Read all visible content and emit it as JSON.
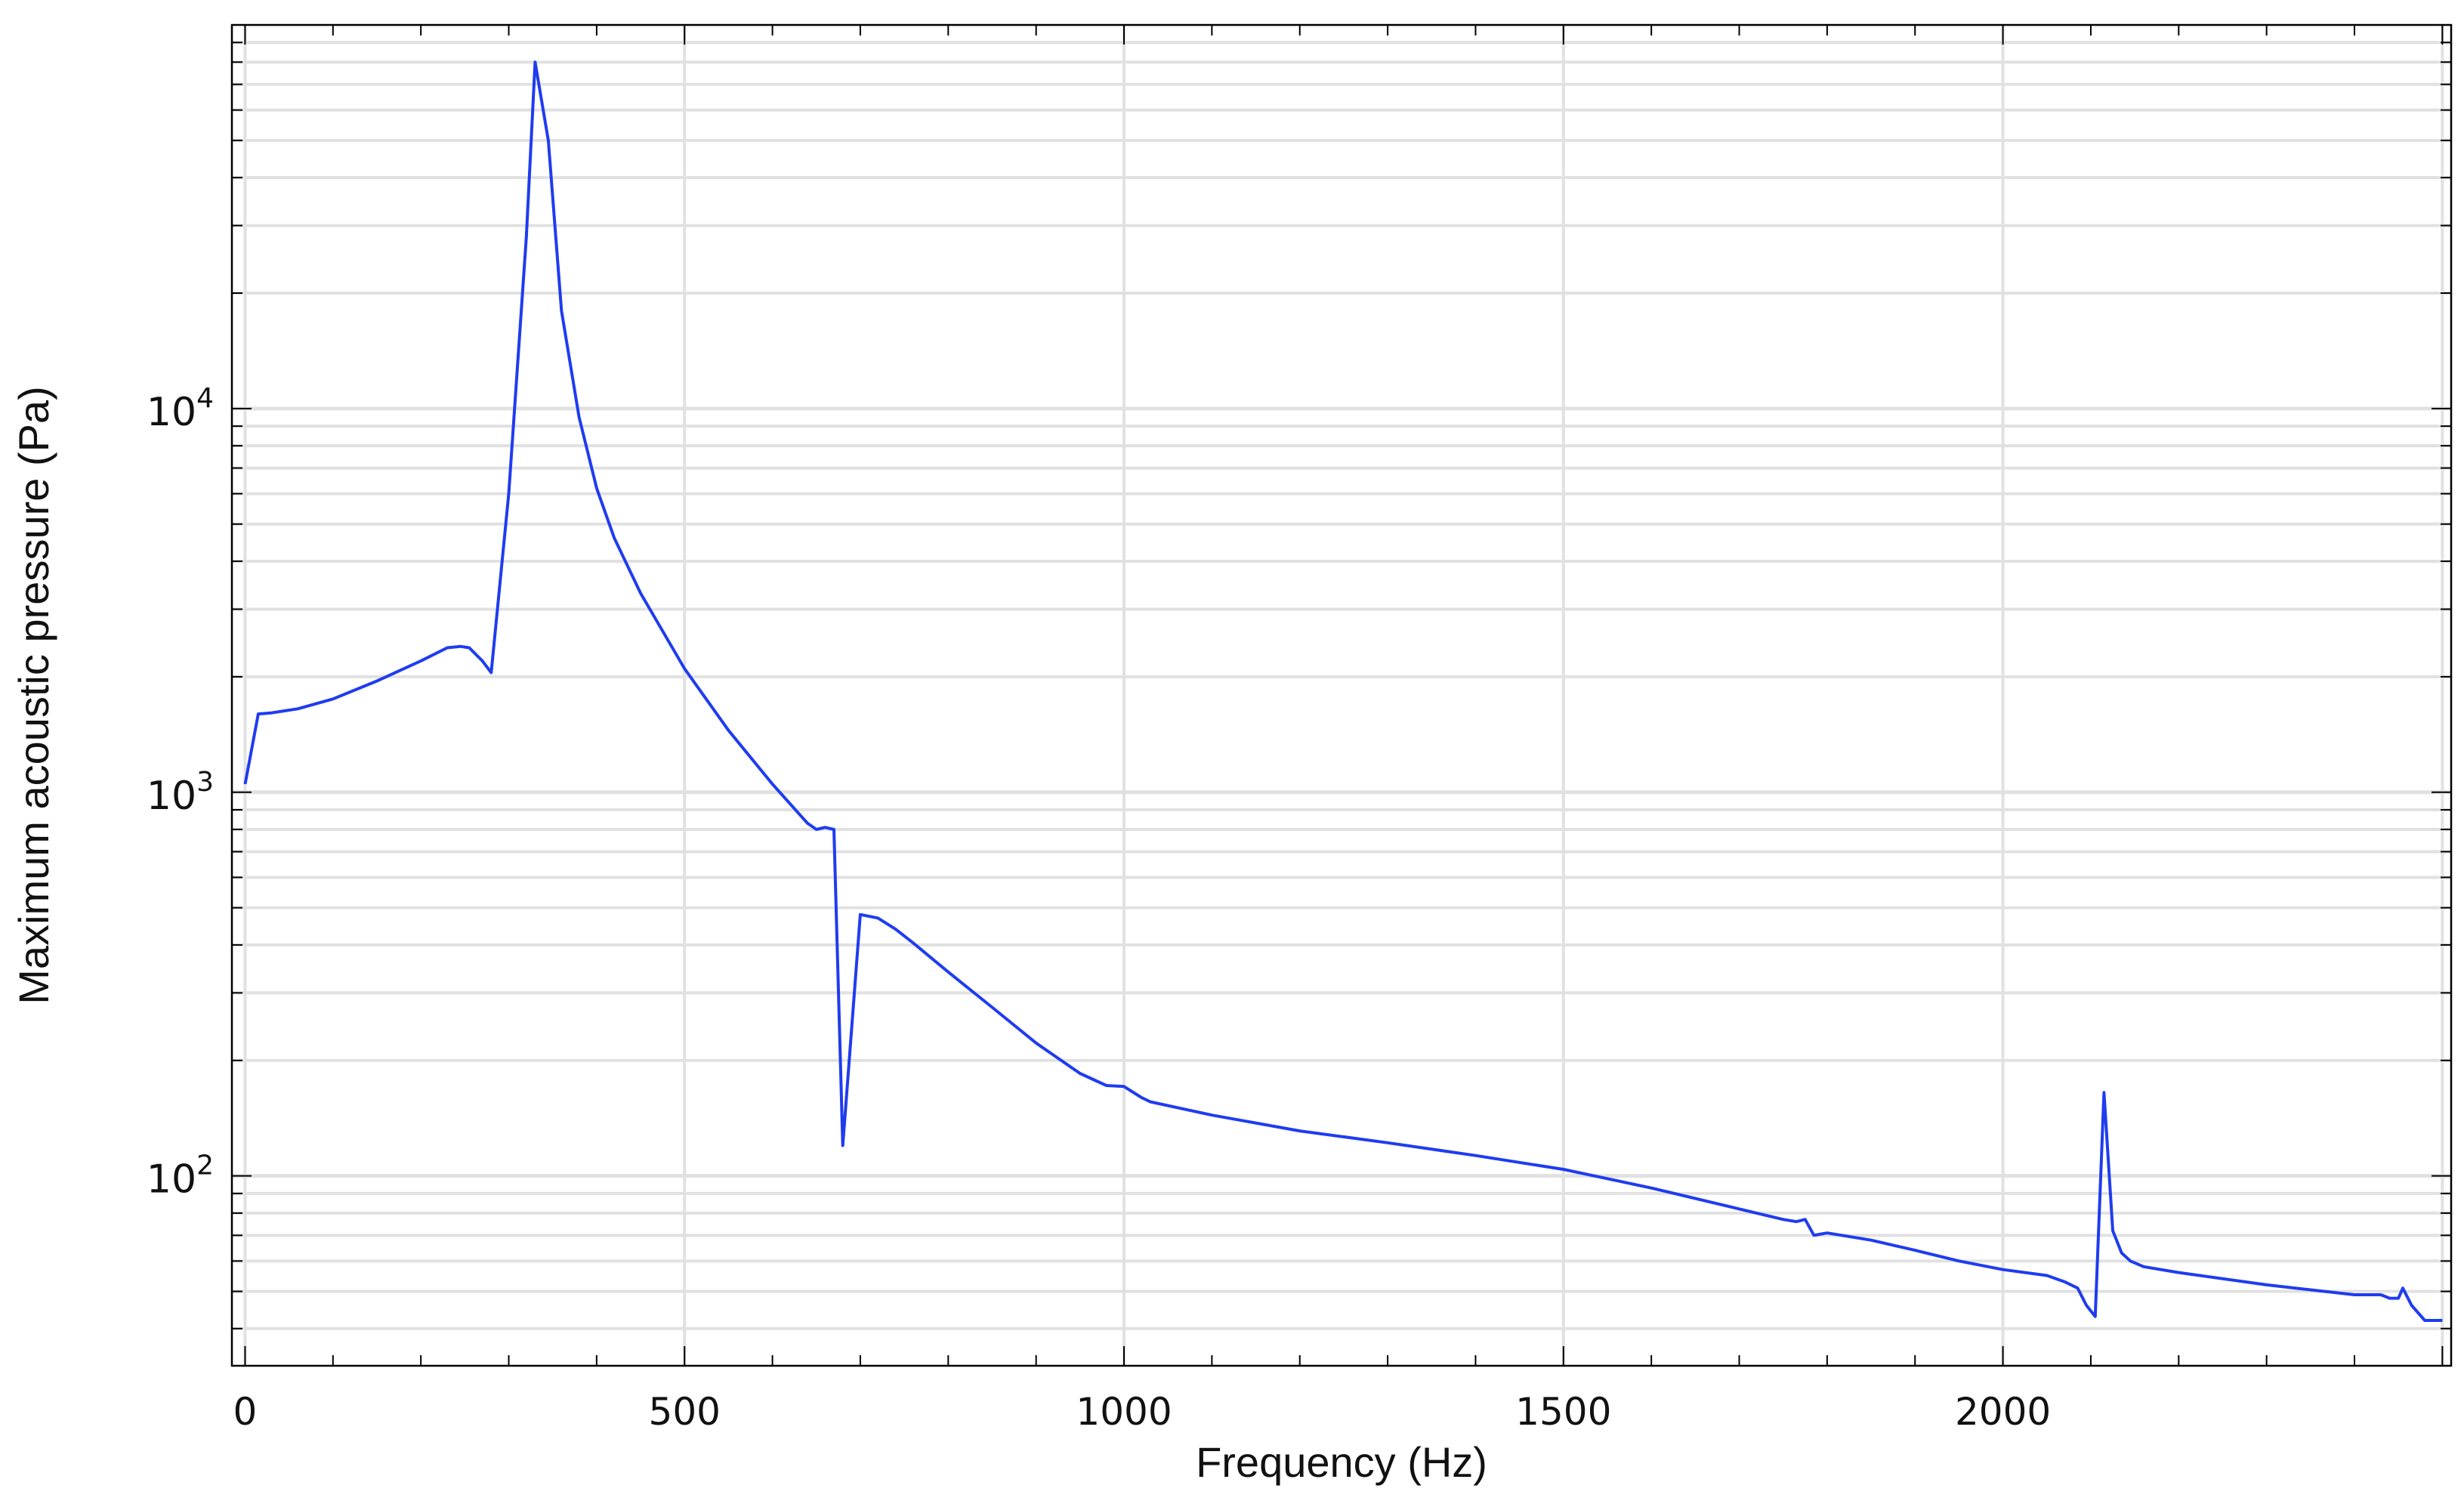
{
  "chart_data": {
    "type": "line",
    "title": "",
    "xlabel": "Frequency (Hz)",
    "ylabel": "Maximum acoustic pressure (Pa)",
    "x_scale": "linear",
    "y_scale": "log",
    "xlim": [
      -15,
      2510
    ],
    "ylim": [
      32,
      100000
    ],
    "x_ticks": [
      0,
      500,
      1000,
      1500,
      2000
    ],
    "x_tick_labels": [
      "0",
      "500",
      "1000",
      "1500",
      "2000"
    ],
    "y_major_ticks": [
      100,
      1000,
      10000
    ],
    "y_tick_labels": [
      {
        "base": "10",
        "exp": "2"
      },
      {
        "base": "10",
        "exp": "3"
      },
      {
        "base": "10",
        "exp": "4"
      }
    ],
    "grid": true,
    "legend": "none",
    "colors": {
      "line": "#1f3cf0",
      "grid": "#e1e1e1",
      "axis": "#000000"
    },
    "series": [
      {
        "x": [
          0,
          15,
          30,
          60,
          100,
          150,
          200,
          230,
          245,
          255,
          270,
          280,
          300,
          320,
          330,
          345,
          360,
          380,
          400,
          420,
          450,
          500,
          550,
          600,
          640,
          650,
          660,
          670,
          680,
          700,
          720,
          740,
          760,
          800,
          850,
          900,
          950,
          980,
          1000,
          1020,
          1030,
          1100,
          1200,
          1300,
          1400,
          1500,
          1600,
          1700,
          1750,
          1765,
          1775,
          1785,
          1800,
          1850,
          1900,
          1950,
          2000,
          2050,
          2070,
          2085,
          2095,
          2105,
          2115,
          2125,
          2135,
          2145,
          2160,
          2200,
          2300,
          2400,
          2430,
          2440,
          2450,
          2455,
          2465,
          2480,
          2500
        ],
        "y": [
          1050,
          1600,
          1610,
          1650,
          1750,
          1950,
          2200,
          2380,
          2400,
          2380,
          2200,
          2050,
          6000,
          28000,
          80000,
          50000,
          18000,
          9500,
          6200,
          4600,
          3300,
          2100,
          1450,
          1050,
          830,
          800,
          810,
          800,
          120,
          480,
          470,
          440,
          405,
          340,
          275,
          222,
          185,
          172,
          171,
          160,
          156,
          144,
          131,
          122,
          113,
          104,
          93,
          82,
          77,
          76,
          77,
          70,
          71,
          68,
          64,
          60,
          57,
          55,
          53,
          51,
          46,
          43,
          165,
          72,
          63,
          60,
          58,
          56,
          52,
          49,
          49,
          48,
          48,
          51,
          46,
          42,
          42
        ]
      }
    ]
  }
}
